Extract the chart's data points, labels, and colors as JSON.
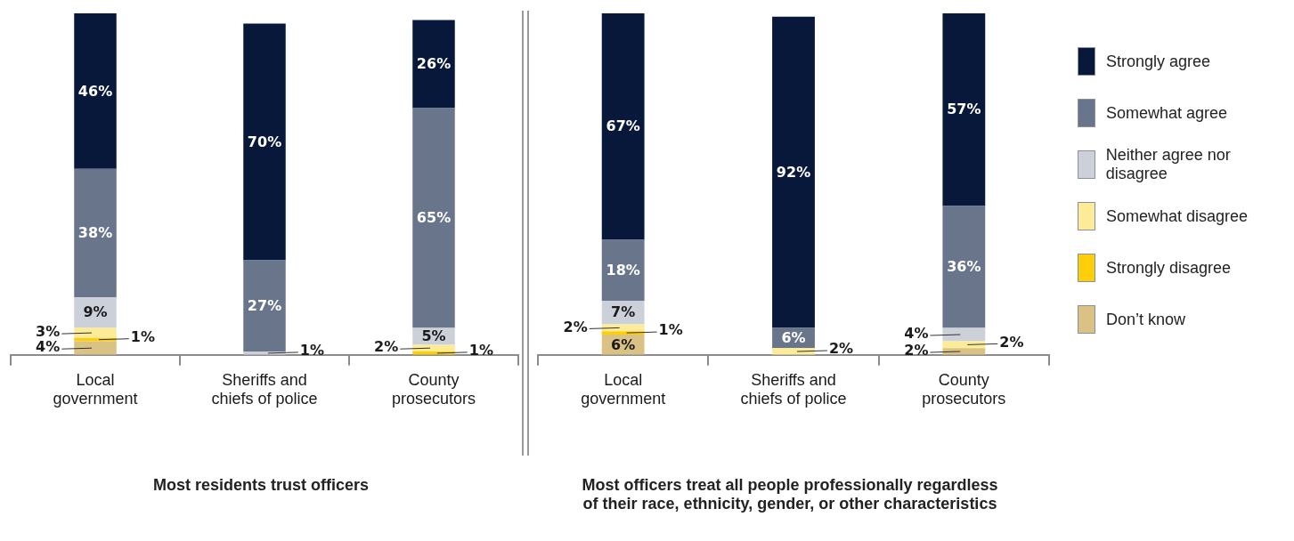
{
  "chart_data": [
    {
      "type": "bar",
      "stacked": true,
      "title": "Most residents trust officers",
      "categories": [
        "Local government",
        "Sheriffs and chiefs of police",
        "County prosecutors"
      ],
      "ylim": [
        0,
        101
      ],
      "tick_labels": "x",
      "legend": false,
      "series": [
        {
          "color": "#d9c284",
          "values": [
            4,
            null,
            null
          ],
          "value_labels": [
            "4%",
            null,
            null
          ]
        },
        {
          "color": "#fccf0a",
          "values": [
            1,
            null,
            1
          ],
          "value_labels": [
            "1%",
            null,
            "1%"
          ]
        },
        {
          "color": "#fcec98",
          "values": [
            3,
            null,
            2
          ],
          "value_labels": [
            "3%",
            null,
            "2%"
          ]
        },
        {
          "color": "#ccd0d9",
          "values": [
            9,
            1,
            5
          ],
          "value_labels": [
            "9%",
            "1%",
            "5%"
          ]
        },
        {
          "color": "#69758b",
          "values": [
            38,
            27,
            65
          ],
          "value_labels": [
            "38%",
            "27%",
            "65%"
          ]
        },
        {
          "color": "#08183a",
          "values": [
            46,
            70,
            26
          ],
          "value_labels": [
            "46%",
            "70%",
            "26%"
          ]
        }
      ]
    },
    {
      "type": "bar",
      "stacked": true,
      "title": "Most officers treat all people professionally regardless of their race, ethnicity, gender, or other characteristics",
      "categories": [
        "Local government",
        "Sheriffs and chiefs of police",
        "County prosecutors"
      ],
      "ylim": [
        0,
        101
      ],
      "tick_labels": "x",
      "legend": "right",
      "series": [
        {
          "name": "Don’t know",
          "color": "#d9c284",
          "values": [
            6,
            null,
            2
          ],
          "value_labels": [
            "6%",
            null,
            "2%"
          ]
        },
        {
          "name": "Strongly disagree",
          "color": "#fccf0a",
          "values": [
            1,
            null,
            null
          ],
          "value_labels": [
            "1%",
            null,
            null
          ]
        },
        {
          "name": "Somewhat disagree",
          "color": "#fcec98",
          "values": [
            2,
            2,
            2
          ],
          "value_labels": [
            "2%",
            "2%",
            "2%"
          ]
        },
        {
          "name": "Neither agree nor disagree",
          "color": "#ccd0d9",
          "values": [
            7,
            null,
            4
          ],
          "value_labels": [
            "7%",
            null,
            "4%"
          ]
        },
        {
          "name": "Somewhat agree",
          "color": "#69758b",
          "values": [
            18,
            6,
            36
          ],
          "value_labels": [
            "18%",
            "6%",
            "36%"
          ]
        },
        {
          "name": "Strongly agree",
          "color": "#08183a",
          "values": [
            67,
            92,
            57
          ],
          "value_labels": [
            "67%",
            "92%",
            "57%"
          ]
        }
      ]
    }
  ]
}
